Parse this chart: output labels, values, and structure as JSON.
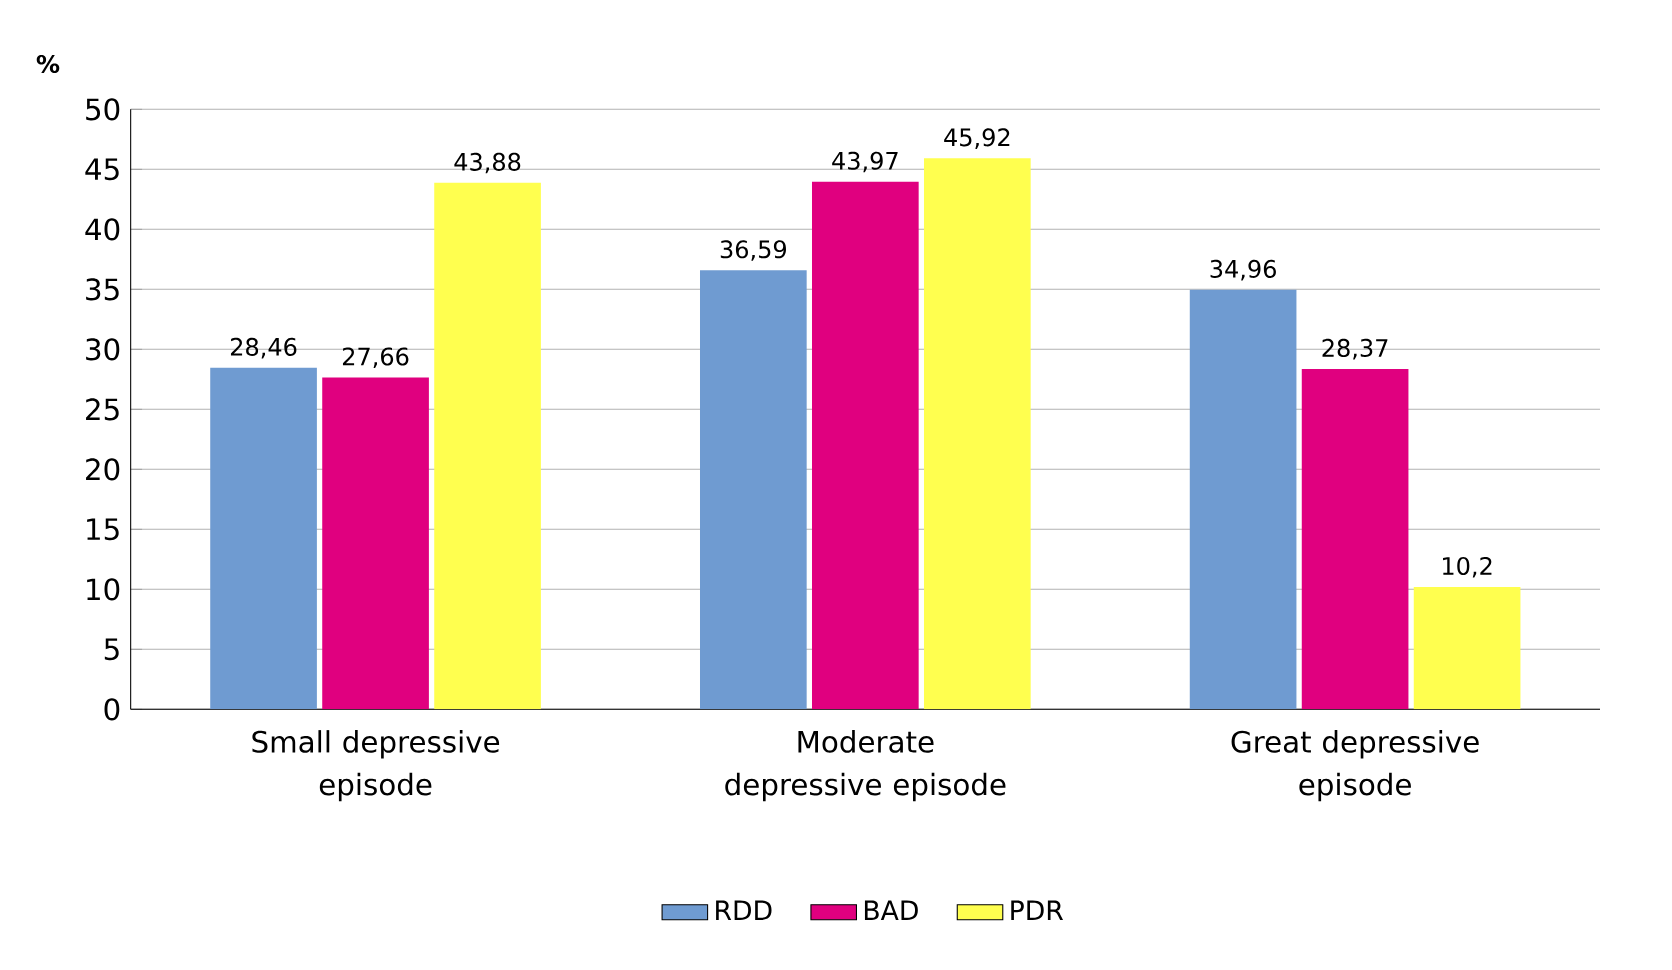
{
  "chart_data": {
    "type": "bar",
    "ylabel": "%",
    "categories": [
      "Small depressive episode",
      "Moderate depressive episode",
      "Great depressive episode"
    ],
    "series": [
      {
        "name": "RDD",
        "color": "#6f9bd1",
        "values": [
          28.46,
          36.59,
          34.96
        ],
        "value_labels": [
          "28,46",
          "36,59",
          "34,96"
        ]
      },
      {
        "name": "BAD",
        "color": "#e0007f",
        "values": [
          27.66,
          43.97,
          28.37
        ],
        "value_labels": [
          "27,66",
          "43,97",
          "28,37"
        ]
      },
      {
        "name": "PDR",
        "color": "#ffff4f",
        "values": [
          43.88,
          45.92,
          10.2
        ],
        "value_labels": [
          "43,88",
          "45,92",
          "10,2"
        ]
      }
    ],
    "ylim": [
      0,
      50
    ],
    "yticks": [
      0,
      5,
      10,
      15,
      20,
      25,
      30,
      35,
      40,
      45,
      50
    ],
    "grid": "y",
    "legend": "bottom"
  }
}
